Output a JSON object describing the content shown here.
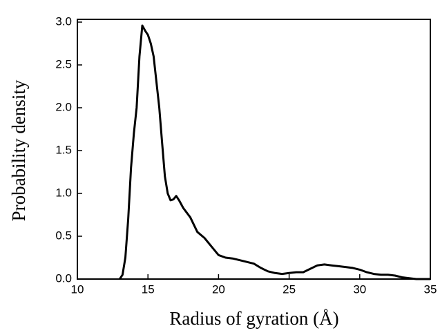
{
  "chart_data": {
    "type": "line",
    "xlabel": "Radius of gyration (Å)",
    "ylabel": "Probability density",
    "xlim": [
      10,
      35
    ],
    "ylim": [
      0,
      3.0
    ],
    "xticks": [
      10,
      15,
      20,
      25,
      30,
      35
    ],
    "yticks": [
      {
        "value": 0,
        "label": "0.0"
      },
      0.5,
      {
        "value": 1,
        "label": "1.0"
      },
      1.5,
      {
        "value": 2,
        "label": "2.0"
      },
      2.5,
      {
        "value": 3,
        "label": "3.0"
      }
    ],
    "color": "#000000",
    "x": [
      13.0,
      13.2,
      13.4,
      13.6,
      13.8,
      14.0,
      14.2,
      14.4,
      14.6,
      14.8,
      15.0,
      15.2,
      15.4,
      15.6,
      15.8,
      16.0,
      16.2,
      16.4,
      16.6,
      16.8,
      17.0,
      17.2,
      17.5,
      18.0,
      18.5,
      19.0,
      19.5,
      20.0,
      20.5,
      21.0,
      21.5,
      22.0,
      22.5,
      23.0,
      23.5,
      24.0,
      24.5,
      25.0,
      25.5,
      26.0,
      26.5,
      27.0,
      27.5,
      28.0,
      28.5,
      29.0,
      29.5,
      30.0,
      30.5,
      31.0,
      31.5,
      32.0,
      32.5,
      33.0,
      33.5,
      34.0,
      35.0
    ],
    "values": [
      0.0,
      0.05,
      0.25,
      0.7,
      1.3,
      1.7,
      2.0,
      2.6,
      2.96,
      2.9,
      2.85,
      2.75,
      2.6,
      2.3,
      2.0,
      1.6,
      1.2,
      1.0,
      0.92,
      0.93,
      0.97,
      0.92,
      0.83,
      0.72,
      0.55,
      0.48,
      0.38,
      0.28,
      0.25,
      0.24,
      0.22,
      0.2,
      0.18,
      0.13,
      0.09,
      0.07,
      0.06,
      0.07,
      0.08,
      0.08,
      0.12,
      0.16,
      0.17,
      0.16,
      0.15,
      0.14,
      0.13,
      0.11,
      0.08,
      0.06,
      0.05,
      0.05,
      0.04,
      0.02,
      0.01,
      0.0,
      0.0
    ]
  }
}
